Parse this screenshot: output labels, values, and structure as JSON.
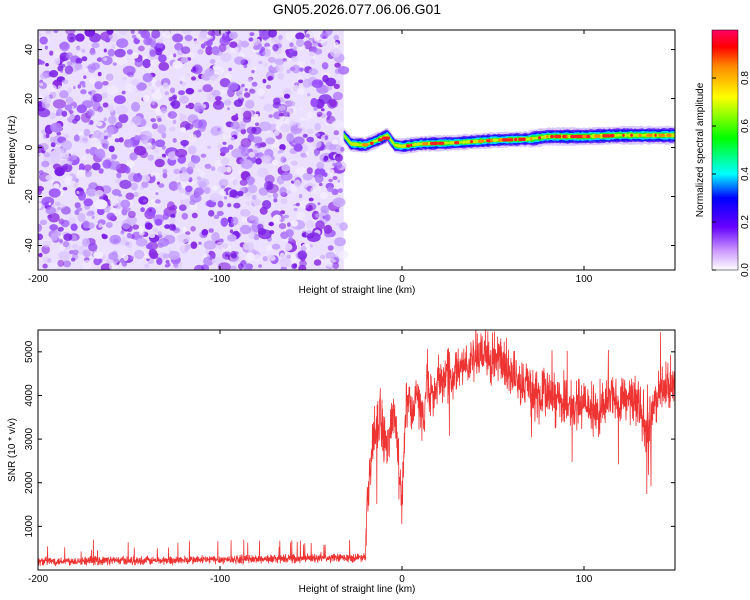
{
  "figure_title": "GN05.2026.077.06.06.G01",
  "chart_data": [
    {
      "type": "heatmap",
      "title": "GN05.2026.077.06.06.G01",
      "xlabel": "Height of straight line (km)",
      "ylabel": "Frequency (Hz)",
      "xlim": [
        -200,
        150
      ],
      "ylim": [
        -50,
        48
      ],
      "xticks": [
        -200,
        -100,
        0,
        100
      ],
      "yticks": [
        -40,
        -20,
        0,
        20,
        40
      ],
      "colorbar": {
        "label": "Normalized spectral amplitude",
        "range": [
          0,
          1
        ],
        "ticks": [
          0.0,
          0.2,
          0.4,
          0.6,
          0.8
        ]
      },
      "noise_region_x": [
        -200,
        -32
      ],
      "tone_region_x": [
        -32,
        150
      ],
      "tone_frequency_track": [
        {
          "x": -32,
          "f": 5.0
        },
        {
          "x": -28,
          "f": 1.5
        },
        {
          "x": -20,
          "f": 1.0
        },
        {
          "x": -12,
          "f": 3.5
        },
        {
          "x": -8,
          "f": 5.0
        },
        {
          "x": -4,
          "f": 1.0
        },
        {
          "x": 0,
          "f": 0.5
        },
        {
          "x": 10,
          "f": 1.5
        },
        {
          "x": 30,
          "f": 2.0
        },
        {
          "x": 50,
          "f": 3.0
        },
        {
          "x": 70,
          "f": 3.5
        },
        {
          "x": 80,
          "f": 4.5
        },
        {
          "x": 100,
          "f": 4.5
        },
        {
          "x": 120,
          "f": 5.0
        },
        {
          "x": 150,
          "f": 5.0
        }
      ]
    },
    {
      "type": "line",
      "xlabel": "Height of straight line (km)",
      "ylabel": "SNR (10 * v/v)",
      "xlim": [
        -200,
        150
      ],
      "ylim": [
        0,
        5500
      ],
      "xticks": [
        -200,
        -100,
        0,
        100
      ],
      "yticks": [
        1000,
        2000,
        3000,
        4000,
        5000
      ],
      "series": [
        {
          "name": "SNR",
          "color": "#ee3333",
          "x": [
            -200,
            -180,
            -160,
            -140,
            -120,
            -100,
            -80,
            -60,
            -40,
            -25,
            -20,
            -19,
            -17,
            -15,
            -12,
            -10,
            -8,
            -6,
            -4,
            -2,
            0,
            2,
            4,
            6,
            8,
            10,
            12,
            14,
            16,
            20,
            25,
            30,
            40,
            50,
            55,
            60,
            65,
            70,
            75,
            80,
            85,
            90,
            95,
            100,
            105,
            110,
            115,
            120,
            125,
            130,
            135,
            140,
            145,
            150
          ],
          "values": [
            200,
            210,
            220,
            215,
            225,
            240,
            250,
            260,
            270,
            280,
            320,
            1800,
            2600,
            3200,
            3600,
            3000,
            2700,
            3300,
            3800,
            2400,
            1600,
            3700,
            3900,
            3500,
            4200,
            3700,
            3600,
            4500,
            3900,
            4300,
            4600,
            4500,
            4800,
            4900,
            4850,
            4600,
            4300,
            4200,
            4000,
            4250,
            3800,
            3900,
            3700,
            3950,
            3600,
            3800,
            4000,
            3700,
            3900,
            3800,
            3300,
            3900,
            4300,
            4200
          ]
        }
      ]
    }
  ]
}
